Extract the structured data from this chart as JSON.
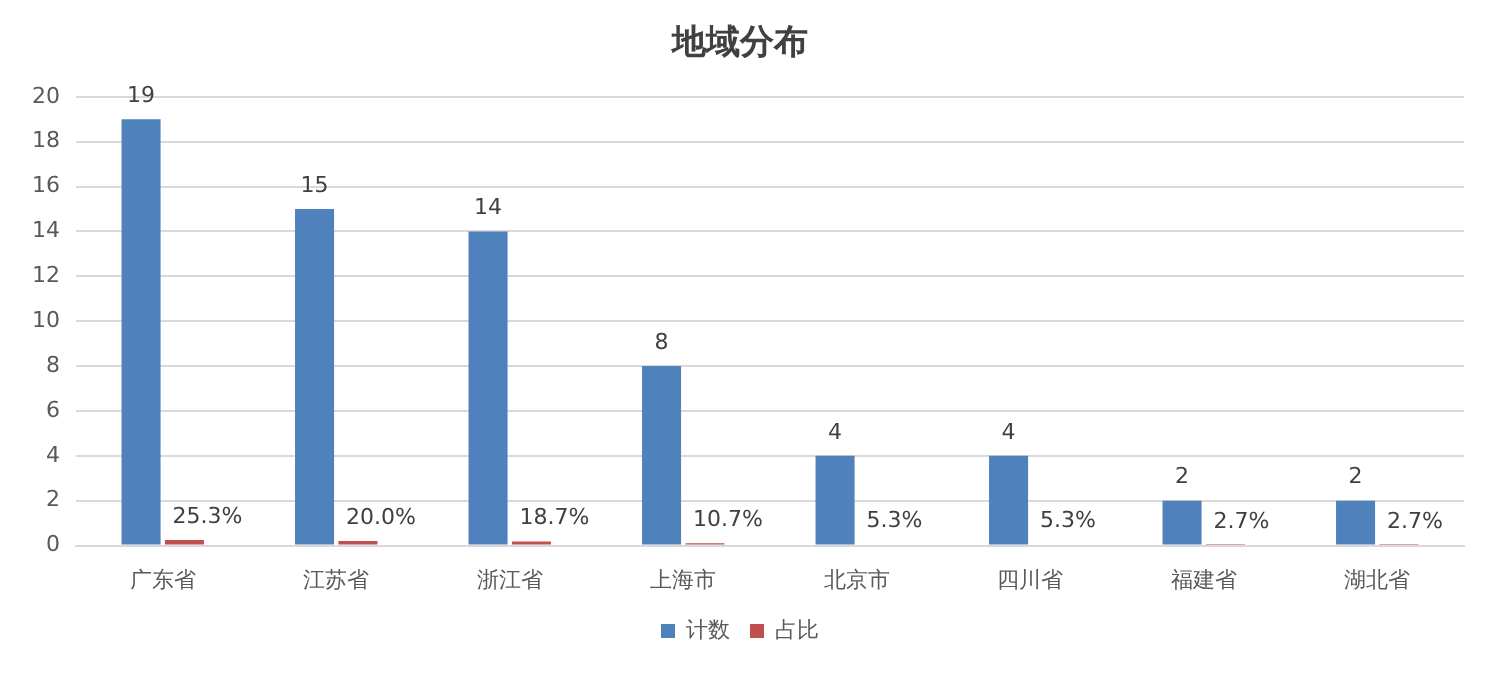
{
  "chart_data": {
    "type": "bar",
    "title": "地域分布",
    "categories": [
      "广东省",
      "江苏省",
      "浙江省",
      "上海市",
      "北京市",
      "四川省",
      "福建省",
      "湖北省"
    ],
    "series": [
      {
        "name": "计数",
        "color": "#4f81bd",
        "values": [
          19,
          15,
          14,
          8,
          4,
          4,
          2,
          2
        ],
        "value_labels": [
          "19",
          "15",
          "14",
          "8",
          "4",
          "4",
          "2",
          "2"
        ]
      },
      {
        "name": "占比",
        "color": "#c0504d",
        "values": [
          0.253,
          0.2,
          0.187,
          0.107,
          0.053,
          0.053,
          0.027,
          0.027
        ],
        "value_labels": [
          "25.3%",
          "20.0%",
          "18.7%",
          "10.7%",
          "5.3%",
          "5.3%",
          "2.7%",
          "2.7%"
        ]
      }
    ],
    "ylim": [
      0,
      20
    ],
    "yticks": [
      0,
      2,
      4,
      6,
      8,
      10,
      12,
      14,
      16,
      18,
      20
    ],
    "grid": "y",
    "legend": "bottom"
  }
}
